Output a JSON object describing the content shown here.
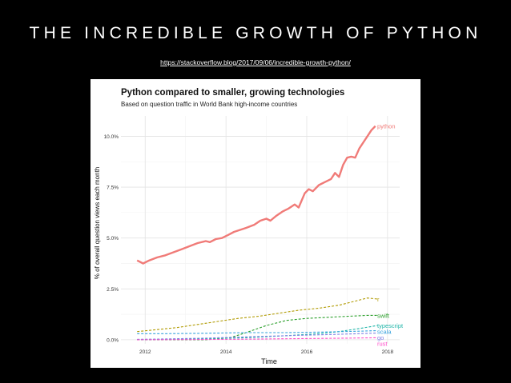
{
  "slide": {
    "title": "THE INCREDIBLE GROWTH OF PYTHON",
    "source_link": "https://stackoverflow.blog/2017/09/06/incredible-growth-python/"
  },
  "chart_data": {
    "type": "line",
    "title": "Python compared to smaller, growing technologies",
    "subtitle": "Based on question traffic in World Bank high-income countries",
    "xlabel": "Time",
    "ylabel": "% of overall question views each month",
    "xlim": [
      2011.4,
      2018.3
    ],
    "ylim": [
      -0.2,
      11.0
    ],
    "x_ticks": [
      2012,
      2014,
      2016,
      2018
    ],
    "x_tick_labels": [
      "2012",
      "2014",
      "2016",
      "2018"
    ],
    "y_ticks": [
      0,
      2.5,
      5,
      7.5,
      10
    ],
    "y_tick_labels": [
      "0.0%",
      "2.5%",
      "5.0%",
      "7.5%",
      "10.0%"
    ],
    "grid": true,
    "legend": "direct-labels-right",
    "series": [
      {
        "name": "python",
        "color": "#f07b78",
        "dash": "solid",
        "width": 2.4,
        "points": [
          [
            2011.8,
            3.9
          ],
          [
            2011.95,
            3.75
          ],
          [
            2012.1,
            3.9
          ],
          [
            2012.3,
            4.05
          ],
          [
            2012.5,
            4.15
          ],
          [
            2012.7,
            4.3
          ],
          [
            2012.9,
            4.45
          ],
          [
            2013.1,
            4.6
          ],
          [
            2013.3,
            4.75
          ],
          [
            2013.5,
            4.85
          ],
          [
            2013.6,
            4.8
          ],
          [
            2013.75,
            4.95
          ],
          [
            2013.9,
            5.0
          ],
          [
            2014.05,
            5.15
          ],
          [
            2014.2,
            5.3
          ],
          [
            2014.35,
            5.4
          ],
          [
            2014.5,
            5.5
          ],
          [
            2014.7,
            5.65
          ],
          [
            2014.85,
            5.85
          ],
          [
            2015.0,
            5.95
          ],
          [
            2015.1,
            5.85
          ],
          [
            2015.25,
            6.1
          ],
          [
            2015.4,
            6.3
          ],
          [
            2015.55,
            6.45
          ],
          [
            2015.7,
            6.65
          ],
          [
            2015.8,
            6.5
          ],
          [
            2015.95,
            7.2
          ],
          [
            2016.05,
            7.4
          ],
          [
            2016.15,
            7.3
          ],
          [
            2016.3,
            7.6
          ],
          [
            2016.45,
            7.75
          ],
          [
            2016.6,
            7.9
          ],
          [
            2016.7,
            8.2
          ],
          [
            2016.8,
            8.0
          ],
          [
            2016.9,
            8.6
          ],
          [
            2017.0,
            8.95
          ],
          [
            2017.1,
            9.0
          ],
          [
            2017.2,
            8.95
          ],
          [
            2017.3,
            9.4
          ],
          [
            2017.4,
            9.7
          ],
          [
            2017.5,
            10.0
          ],
          [
            2017.6,
            10.3
          ],
          [
            2017.7,
            10.5
          ]
        ]
      },
      {
        "name": "r",
        "color": "#b09a00",
        "dash": "3,2",
        "width": 1.1,
        "points": [
          [
            2011.8,
            0.4
          ],
          [
            2012.3,
            0.5
          ],
          [
            2012.8,
            0.6
          ],
          [
            2013.3,
            0.75
          ],
          [
            2013.8,
            0.9
          ],
          [
            2014.3,
            1.05
          ],
          [
            2014.8,
            1.15
          ],
          [
            2015.3,
            1.3
          ],
          [
            2015.8,
            1.45
          ],
          [
            2016.3,
            1.55
          ],
          [
            2016.8,
            1.7
          ],
          [
            2017.2,
            1.9
          ],
          [
            2017.5,
            2.05
          ],
          [
            2017.75,
            2.0
          ]
        ]
      },
      {
        "name": "swift",
        "color": "#2ca02c",
        "dash": "3,2",
        "width": 1.1,
        "points": [
          [
            2011.8,
            0.0
          ],
          [
            2013.5,
            0.0
          ],
          [
            2014.1,
            0.1
          ],
          [
            2014.5,
            0.35
          ],
          [
            2015.0,
            0.7
          ],
          [
            2015.5,
            0.95
          ],
          [
            2016.0,
            1.05
          ],
          [
            2016.5,
            1.1
          ],
          [
            2017.0,
            1.15
          ],
          [
            2017.5,
            1.2
          ],
          [
            2017.75,
            1.2
          ]
        ]
      },
      {
        "name": "typescript",
        "color": "#1fb5a8",
        "dash": "3,2",
        "width": 1.1,
        "points": [
          [
            2011.8,
            0.0
          ],
          [
            2012.5,
            0.02
          ],
          [
            2013.5,
            0.05
          ],
          [
            2014.5,
            0.1
          ],
          [
            2015.5,
            0.2
          ],
          [
            2016.3,
            0.3
          ],
          [
            2016.8,
            0.4
          ],
          [
            2017.3,
            0.55
          ],
          [
            2017.75,
            0.7
          ]
        ]
      },
      {
        "name": "scala",
        "color": "#33a0dd",
        "dash": "3,2",
        "width": 1.1,
        "points": [
          [
            2011.8,
            0.3
          ],
          [
            2012.5,
            0.3
          ],
          [
            2013.5,
            0.32
          ],
          [
            2014.5,
            0.35
          ],
          [
            2015.5,
            0.35
          ],
          [
            2016.5,
            0.38
          ],
          [
            2017.3,
            0.42
          ],
          [
            2017.75,
            0.45
          ]
        ]
      },
      {
        "name": "go",
        "color": "#7f7fe5",
        "dash": "3,2",
        "width": 1.1,
        "points": [
          [
            2011.8,
            0.02
          ],
          [
            2012.5,
            0.04
          ],
          [
            2013.5,
            0.08
          ],
          [
            2014.5,
            0.14
          ],
          [
            2015.5,
            0.2
          ],
          [
            2016.5,
            0.25
          ],
          [
            2017.3,
            0.3
          ],
          [
            2017.75,
            0.33
          ]
        ]
      },
      {
        "name": "rust",
        "color": "#ff49c8",
        "dash": "3,2",
        "width": 1.1,
        "points": [
          [
            2011.8,
            0.0
          ],
          [
            2013.0,
            0.01
          ],
          [
            2014.0,
            0.02
          ],
          [
            2015.0,
            0.04
          ],
          [
            2016.0,
            0.06
          ],
          [
            2017.0,
            0.08
          ],
          [
            2017.75,
            0.1
          ]
        ]
      }
    ]
  }
}
